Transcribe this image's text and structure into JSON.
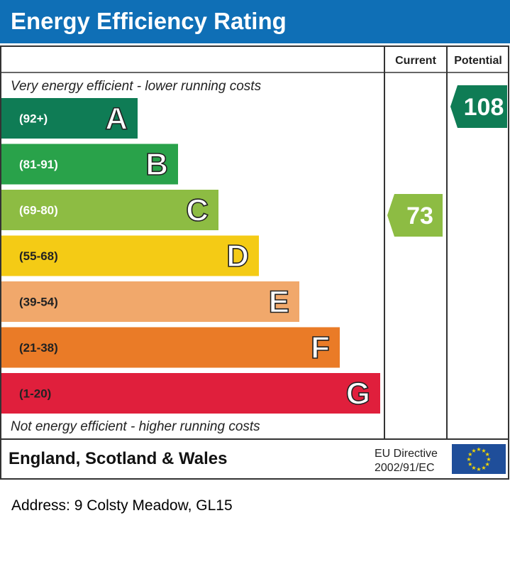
{
  "header": {
    "title": "Energy Efficiency Rating"
  },
  "columns": {
    "current": "Current",
    "potential": "Potential"
  },
  "notes": {
    "top": "Very energy efficient - lower running costs",
    "bottom": "Not energy efficient - higher running costs"
  },
  "footer": {
    "region": "England, Scotland & Wales",
    "directive_line1": "EU Directive",
    "directive_line2": "2002/91/EC"
  },
  "address": "Address: 9 Colsty Meadow, GL15",
  "chart_data": {
    "type": "bar",
    "bands": [
      {
        "letter": "A",
        "range": "(92+)",
        "color": "#0f7c55"
      },
      {
        "letter": "B",
        "range": "(81-91)",
        "color": "#29a24a"
      },
      {
        "letter": "C",
        "range": "(69-80)",
        "color": "#8dbc43"
      },
      {
        "letter": "D",
        "range": "(55-68)",
        "color": "#f4cb15"
      },
      {
        "letter": "E",
        "range": "(39-54)",
        "color": "#f1a86b"
      },
      {
        "letter": "F",
        "range": "(21-38)",
        "color": "#ea7b27"
      },
      {
        "letter": "G",
        "range": "(1-20)",
        "color": "#e01f3c"
      }
    ],
    "current": {
      "value": 73,
      "band": "C",
      "color": "#8dbc43"
    },
    "potential": {
      "value": 108,
      "band": "A",
      "color": "#0f7c55"
    }
  }
}
